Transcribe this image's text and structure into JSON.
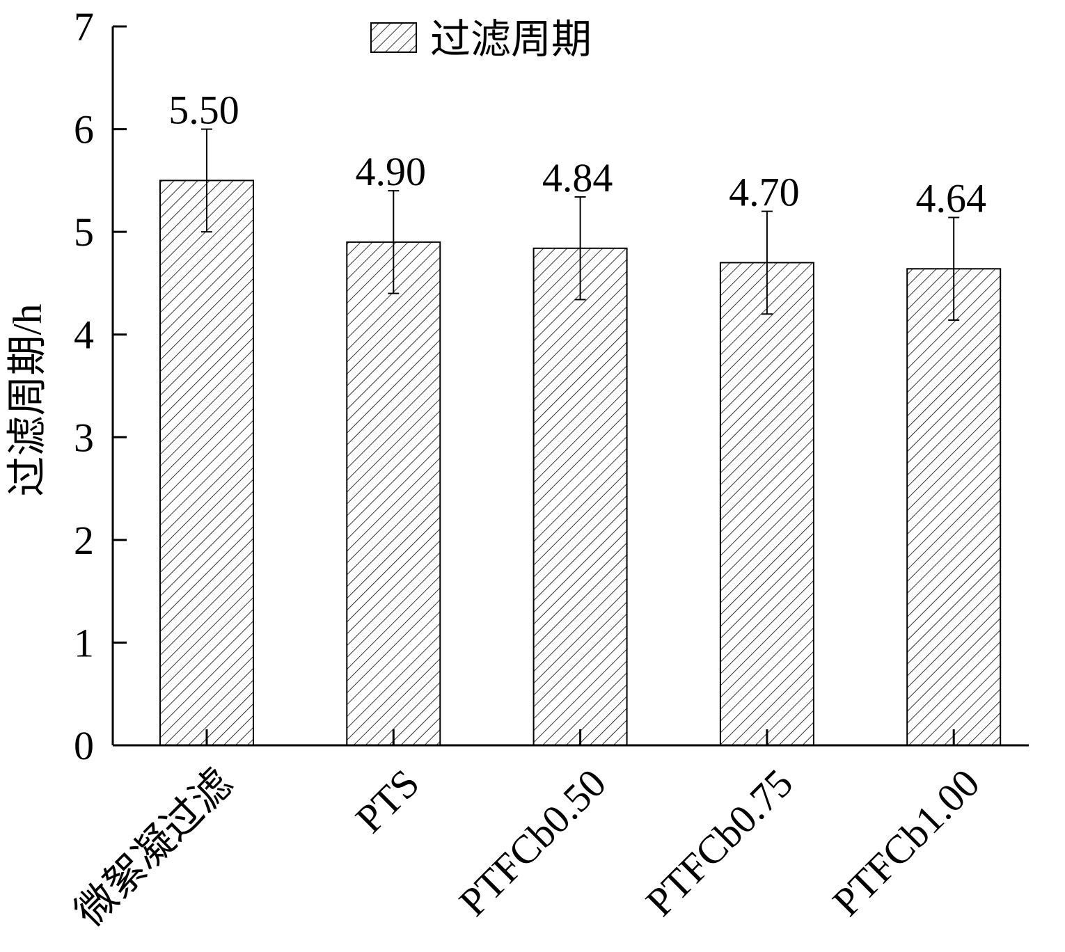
{
  "chart_data": {
    "type": "bar",
    "y_label": "过滤周期/h",
    "categories": [
      "微絮凝过滤",
      "PTS",
      "PTFCb0.50",
      "PTFCb0.75",
      "PTFCb1.00"
    ],
    "series": [
      {
        "name": "过滤周期",
        "color": "#000000",
        "values": [
          5.5,
          4.9,
          4.84,
          4.7,
          4.64
        ],
        "value_labels": [
          "5.50",
          "4.90",
          "4.84",
          "4.70",
          "4.64"
        ],
        "errors": [
          0.5,
          0.5,
          0.5,
          0.5,
          0.5
        ]
      }
    ],
    "ylim": [
      0,
      7
    ],
    "yticks": [
      0,
      1,
      2,
      3,
      4,
      5,
      6,
      7
    ],
    "legend": "top",
    "grid": false
  }
}
